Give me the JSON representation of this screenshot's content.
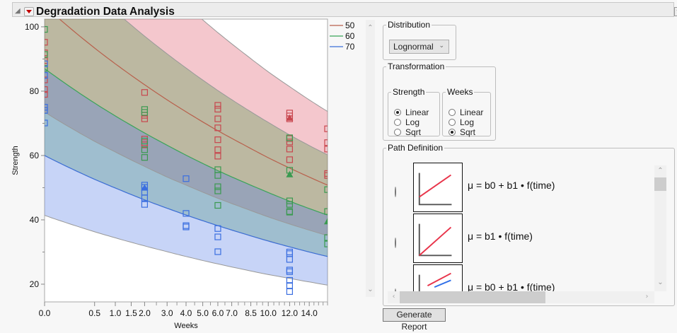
{
  "header": {
    "title": "Degradation Data Analysis"
  },
  "controls": {
    "distribution": {
      "label": "Distribution",
      "selected": "Lognormal"
    },
    "transformation": {
      "label": "Transformation",
      "strength": {
        "label": "Strength",
        "options": [
          "Linear",
          "Log",
          "Sqrt"
        ],
        "selected": "Linear"
      },
      "weeks": {
        "label": "Weeks",
        "options": [
          "Linear",
          "Log",
          "Sqrt"
        ],
        "selected": "Sqrt"
      }
    },
    "path_definition": {
      "label": "Path Definition",
      "items": [
        {
          "formula": "μ = b0 + b1 • f(time)",
          "selected": false
        },
        {
          "formula": "μ = b1 • f(time)",
          "selected": false
        },
        {
          "formula": "μ = b0     + b1 • f(time)",
          "selected": false
        }
      ]
    },
    "generate_label": "Generate Report"
  },
  "chart_data": {
    "type": "scatter",
    "xlabel": "Weeks",
    "ylabel": "Strength",
    "x_scale": "sqrt",
    "xlim": [
      0,
      16
    ],
    "ylim": [
      14.5,
      102.4
    ],
    "x_ticks": [
      0,
      0.5,
      1,
      1.5,
      2,
      3,
      4,
      5,
      6,
      7,
      8.5,
      10,
      12,
      14
    ],
    "x_tick_labels": [
      "0.0",
      "0.5",
      "1.0",
      "1.5",
      "2.0",
      "3.0",
      "4.0",
      "5.0",
      "6.0",
      "7.0",
      "8.5",
      "10.0",
      "12.0",
      "14.0"
    ],
    "y_ticks": [
      20,
      40,
      60,
      80,
      100
    ],
    "y_tick_labels": [
      "20",
      "40",
      "60",
      "80",
      "100"
    ],
    "grid": false,
    "legend_position": "right",
    "band_weeks": [
      0,
      0.5,
      1,
      2,
      3,
      4,
      6,
      8,
      10,
      12,
      14,
      16
    ],
    "series": [
      {
        "name": "50",
        "color": "#c8464e",
        "line_color": "#b8604c",
        "band_fill": "rgba(220,80,100,0.32)",
        "fit": [
          106.5,
          93.4,
          88.5,
          82.0,
          77.3,
          73.6,
          67.7,
          63.2,
          59.3,
          56.1,
          53.3,
          50.8
        ],
        "upper": [
          154.4,
          135.4,
          128.3,
          118.9,
          112.1,
          106.7,
          98.2,
          91.6,
          86.0,
          81.4,
          77.3,
          73.7
        ],
        "lower": [
          73.5,
          64.4,
          61.1,
          56.6,
          53.3,
          50.8,
          46.7,
          43.6,
          40.9,
          38.7,
          36.8,
          35.1
        ],
        "points": [
          [
            0,
            95.2
          ],
          [
            0,
            91.9
          ],
          [
            0,
            89.5
          ],
          [
            0,
            83.5
          ],
          [
            0,
            80.5
          ],
          [
            0,
            79.0
          ],
          [
            2,
            79.6
          ],
          [
            2,
            72.5
          ],
          [
            2,
            71.4
          ],
          [
            2,
            65.1
          ],
          [
            2,
            64.0
          ],
          [
            2,
            63.3
          ],
          [
            6,
            75.6
          ],
          [
            6,
            74.4
          ],
          [
            6,
            71.4
          ],
          [
            6,
            68.6
          ],
          [
            6,
            64.9
          ],
          [
            6,
            61.8
          ],
          [
            6,
            59.8
          ],
          [
            12,
            73.2
          ],
          [
            12,
            72.3
          ],
          [
            12,
            71.4
          ],
          [
            12,
            65.3
          ],
          [
            12,
            64.2
          ],
          [
            12,
            62.0
          ],
          [
            12,
            58.7
          ],
          [
            16,
            68.3
          ],
          [
            16,
            64.0
          ],
          [
            16,
            62.0
          ],
          [
            16,
            54.4
          ],
          [
            16,
            53.8
          ]
        ],
        "triangles": [
          [
            12,
            71.7
          ]
        ]
      },
      {
        "name": "60",
        "color": "#3a9a50",
        "line_color": "#3aa55a",
        "band_fill": "rgba(60,150,60,0.30)",
        "fit": [
          87.0,
          76.3,
          72.3,
          67.0,
          63.2,
          60.1,
          55.3,
          51.6,
          48.5,
          45.8,
          43.5,
          41.5
        ],
        "upper": [
          126.2,
          110.6,
          104.8,
          97.1,
          91.6,
          87.2,
          80.2,
          74.8,
          70.3,
          66.4,
          63.1,
          60.2
        ],
        "lower": [
          60.0,
          52.6,
          49.9,
          46.2,
          43.6,
          41.5,
          38.2,
          35.6,
          33.5,
          31.6,
          30.0,
          28.6
        ],
        "points": [
          [
            0,
            99.2
          ],
          [
            0,
            91.4
          ],
          [
            0,
            87.1
          ],
          [
            2,
            74.3
          ],
          [
            2,
            73.4
          ],
          [
            2,
            61.8
          ],
          [
            2,
            59.4
          ],
          [
            2,
            64.5
          ],
          [
            6,
            55.6
          ],
          [
            6,
            53.8
          ],
          [
            6,
            50.3
          ],
          [
            6,
            49.0
          ],
          [
            6,
            44.5
          ],
          [
            12,
            55.4
          ],
          [
            12,
            45.9
          ],
          [
            12,
            44.8
          ],
          [
            12,
            42.6
          ],
          [
            12,
            42.4
          ],
          [
            12,
            65.5
          ],
          [
            16,
            49.4
          ],
          [
            16,
            42.6
          ],
          [
            16,
            34.5
          ],
          [
            16,
            32.5
          ]
        ],
        "triangles": [
          [
            12,
            54.1
          ],
          [
            16,
            39.5
          ]
        ]
      },
      {
        "name": "70",
        "color": "#3a6ee0",
        "line_color": "#3b6fd8",
        "band_fill": "rgba(80,120,230,0.32)",
        "fit": [
          60.0,
          52.6,
          49.9,
          46.2,
          43.6,
          41.5,
          38.2,
          35.6,
          33.4,
          31.6,
          30.0,
          28.6
        ],
        "upper": [
          87.0,
          76.3,
          72.3,
          67.0,
          63.2,
          60.1,
          55.3,
          51.6,
          48.5,
          45.8,
          43.5,
          41.5
        ],
        "lower": [
          41.4,
          36.3,
          34.4,
          31.9,
          30.1,
          28.6,
          26.3,
          24.5,
          23.0,
          21.8,
          20.7,
          19.7
        ],
        "points": [
          [
            0,
            88.5
          ],
          [
            0,
            84.9
          ],
          [
            0,
            75.0
          ],
          [
            0,
            74.0
          ],
          [
            0,
            70.1
          ],
          [
            2,
            50.8
          ],
          [
            2,
            50.1
          ],
          [
            2,
            48.6
          ],
          [
            2,
            46.8
          ],
          [
            2,
            44.8
          ],
          [
            4,
            52.8
          ],
          [
            4,
            42.0
          ],
          [
            4,
            38.2
          ],
          [
            4,
            37.8
          ],
          [
            6,
            37.3
          ],
          [
            6,
            34.7
          ],
          [
            6,
            30.1
          ],
          [
            12,
            30.0
          ],
          [
            12,
            29.5
          ],
          [
            12,
            27.7
          ],
          [
            12,
            24.4
          ],
          [
            12,
            23.9
          ],
          [
            12,
            21.2
          ],
          [
            12,
            19.6
          ],
          [
            12,
            17.7
          ]
        ],
        "triangles": [
          [
            2,
            50.0
          ]
        ]
      }
    ]
  }
}
